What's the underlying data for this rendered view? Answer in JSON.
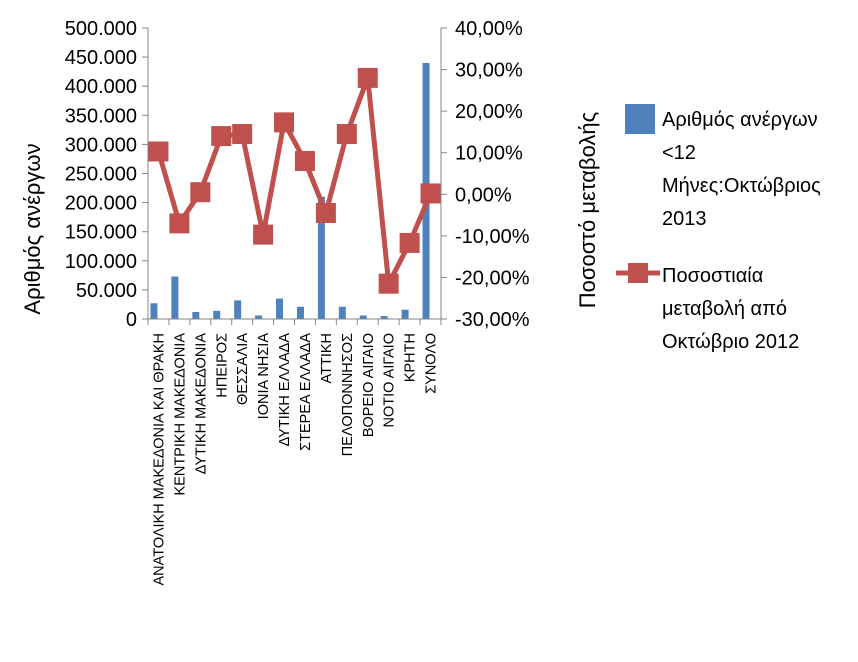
{
  "chart_data": {
    "type": "bar",
    "categories": [
      "ΑΝΑΤΟΛΙΚΗ ΜΑΚΕΔΟΝΙΑ ΚΑΙ ΘΡΑΚΗ",
      "ΚΕΝΤΡΙΚΗ ΜΑΚΕΔΟΝΙΑ",
      "ΔΥΤΙΚΗ ΜΑΚΕΔΟΝΙΑ",
      "ΗΠΕΙΡΟΣ",
      "ΘΕΣΣΑΛΙΑ",
      "ΙΟΝΙΑ ΝΗΣΙΑ",
      "ΔΥΤΙΚΗ ΕΛΛΑΔΑ",
      "ΣΤΕΡΕΑ ΕΛΛΑΔΑ",
      "ΑΤΤΙΚΗ",
      "ΠΕΛΟΠΟΝΝΗΣΟΣ",
      "ΒΟΡΕΙΟ ΑΙΓΑΙΟ",
      "ΝΟΤΙΟ ΑΙΓΑΙΟ",
      "ΚΡΗΤΗ",
      "ΣΥΝΟΛΟ"
    ],
    "series": [
      {
        "name": "Αριθμός ανέργων <12 Μήνες:Οκτώβριος 2013",
        "kind": "bar",
        "axis": "left",
        "color": "#4F81BD",
        "values": [
          27000,
          73000,
          12000,
          14000,
          32000,
          6000,
          35000,
          21000,
          210000,
          21000,
          6000,
          5000,
          16000,
          440000
        ]
      },
      {
        "name": "Ποσοστιαία μεταβολή από Οκτώβριο 2012",
        "kind": "line",
        "axis": "right",
        "color": "#C0504D",
        "values": [
          10.3,
          -7.0,
          0.5,
          14.0,
          14.5,
          -9.7,
          17.3,
          8.0,
          -4.5,
          14.5,
          28.0,
          -21.5,
          -11.7,
          0.2
        ]
      }
    ],
    "y_left": {
      "label": "Αριθμός ανέργων",
      "ylim": [
        0,
        500000
      ],
      "ticks": [
        "0",
        "50.000",
        "100.000",
        "150.000",
        "200.000",
        "250.000",
        "300.000",
        "350.000",
        "400.000",
        "450.000",
        "500.000"
      ]
    },
    "y_right": {
      "label": "Ποσοστό μεταβολής",
      "ylim": [
        -30,
        40
      ],
      "ticks": [
        "-30,00%",
        "-20,00%",
        "-10,00%",
        "0,00%",
        "10,00%",
        "20,00%",
        "30,00%",
        "40,00%"
      ]
    },
    "legend": {
      "placement": "right",
      "entries": [
        {
          "lines": [
            "Αριθμός ανέργων",
            "<12",
            "Μήνες:Οκτώβριος",
            "2013"
          ]
        },
        {
          "lines": [
            "Ποσοστιαία",
            "μεταβολή από",
            "Οκτώβριο 2012"
          ]
        }
      ]
    },
    "grid": false
  }
}
